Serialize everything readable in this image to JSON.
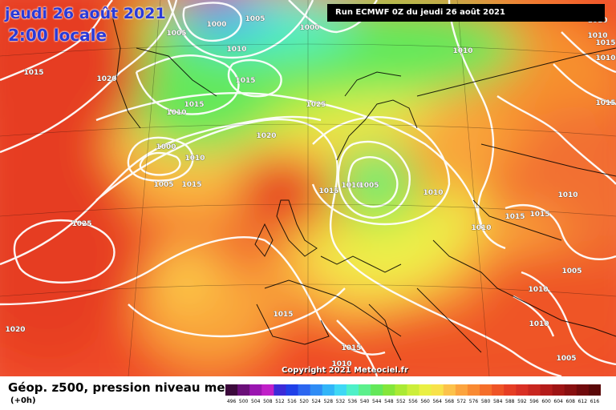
{
  "title": {
    "date": "jeudi 26 août 2021",
    "time": "2:00 locale"
  },
  "run_label": "Run ECMWF 0Z du jeudi 26 août 2021",
  "copyright": "Copyright 2021 Meteociel.fr",
  "legend": {
    "title": "Géop. z500, pression niveau mer",
    "subtitle": "(+0h)",
    "ticks": [
      "496",
      "500",
      "504",
      "508",
      "512",
      "516",
      "520",
      "524",
      "528",
      "532",
      "536",
      "540",
      "544",
      "548",
      "552",
      "556",
      "560",
      "564",
      "568",
      "572",
      "576",
      "580",
      "584",
      "588",
      "592",
      "596",
      "600",
      "604",
      "608",
      "612",
      "616"
    ],
    "colors": [
      "#3c0a3c",
      "#6a0f78",
      "#9a15b0",
      "#c020c8",
      "#3c2bd8",
      "#2040e8",
      "#2c66f0",
      "#2f8cf5",
      "#32b5f8",
      "#3fd8f5",
      "#4ef0c8",
      "#5cf08c",
      "#63e85a",
      "#84e63a",
      "#aaea34",
      "#ccee3a",
      "#eaf044",
      "#f8e24a",
      "#fcc24a",
      "#fca43e",
      "#f98a32",
      "#f56e2a",
      "#ef5426",
      "#e63e24",
      "#d93024",
      "#c8261f",
      "#b41c1a",
      "#9e1414",
      "#880f10",
      "#700a0c",
      "#5a0808"
    ]
  },
  "isobar_labels": [
    {
      "text": "1005"
    },
    {
      "text": "1000"
    },
    {
      "text": "1005"
    },
    {
      "text": "1000"
    },
    {
      "text": "1010"
    },
    {
      "text": "1015"
    },
    {
      "text": "1020"
    },
    {
      "text": "1015"
    },
    {
      "text": "1015"
    },
    {
      "text": "1010"
    },
    {
      "text": "1025"
    },
    {
      "text": "1020"
    },
    {
      "text": "1000"
    },
    {
      "text": "1010"
    },
    {
      "text": "1005"
    },
    {
      "text": "1015"
    },
    {
      "text": "1025"
    },
    {
      "text": "1015"
    },
    {
      "text": "1010"
    },
    {
      "text": "1005"
    },
    {
      "text": "1010"
    },
    {
      "text": "1010"
    },
    {
      "text": "1010"
    },
    {
      "text": "1010"
    },
    {
      "text": "1015"
    },
    {
      "text": "1015"
    },
    {
      "text": "1010"
    },
    {
      "text": "1005"
    },
    {
      "text": "1010"
    },
    {
      "text": "1010"
    },
    {
      "text": "1005"
    },
    {
      "text": "1015"
    },
    {
      "text": "1015"
    },
    {
      "text": "1015"
    },
    {
      "text": "1010"
    },
    {
      "text": "1020"
    },
    {
      "text": "1010"
    },
    {
      "text": "1010"
    },
    {
      "text": "1015"
    }
  ]
}
